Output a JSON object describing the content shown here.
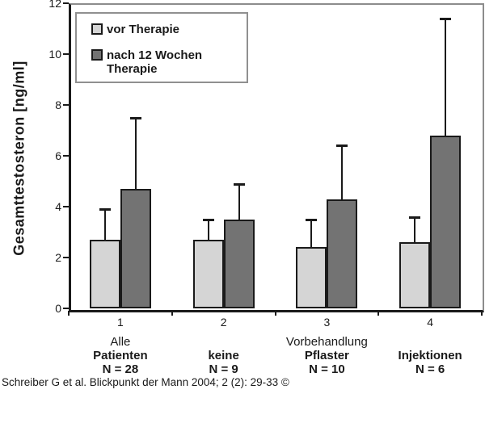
{
  "figure": {
    "background": "#ffffff",
    "axis_color": "#1a1a1a",
    "frame_color": "#8c8c8c"
  },
  "chart_data": {
    "type": "bar",
    "title": "",
    "y_axis_title": "Gesamttestosteron [ng/ml]",
    "xlabel": "",
    "ylim": [
      0,
      12
    ],
    "yticks": [
      0,
      2,
      4,
      6,
      8,
      10,
      12
    ],
    "grid": false,
    "legend_position": "top-left",
    "categories": [
      "1",
      "2",
      "3",
      "4"
    ],
    "series": [
      {
        "name": "vor Therapie",
        "color": "#d5d5d5",
        "values": [
          2.7,
          2.7,
          2.4,
          2.6
        ],
        "error_top": [
          3.9,
          3.5,
          3.5,
          3.6
        ]
      },
      {
        "name": "nach 12 Wochen Therapie",
        "color": "#737373",
        "values": [
          4.7,
          3.5,
          4.3,
          6.8
        ],
        "error_top": [
          7.5,
          4.9,
          6.4,
          11.4
        ]
      }
    ],
    "groups": [
      {
        "number": "1",
        "line1": "Alle",
        "line1_bold": false,
        "line2": "Patienten",
        "line3": "N = 28"
      },
      {
        "number": "2",
        "line1": "",
        "line1_bold": false,
        "line2": "keine",
        "line3": "N = 9"
      },
      {
        "number": "3",
        "line1": "Vorbehandlung",
        "line1_bold": false,
        "line2": "Pflaster",
        "line3": "N = 10"
      },
      {
        "number": "4",
        "line1": "",
        "line1_bold": false,
        "line2": "Injektionen",
        "line3": "N = 6"
      }
    ]
  },
  "legend": {
    "items": [
      {
        "label": "vor Therapie",
        "color": "#d5d5d5"
      },
      {
        "label": "nach 12 Wochen Therapie",
        "color": "#737373"
      }
    ]
  },
  "footer": {
    "citation": "Schreiber G et al. Blickpunkt der Mann 2004; 2 (2): 29-33 ©"
  }
}
